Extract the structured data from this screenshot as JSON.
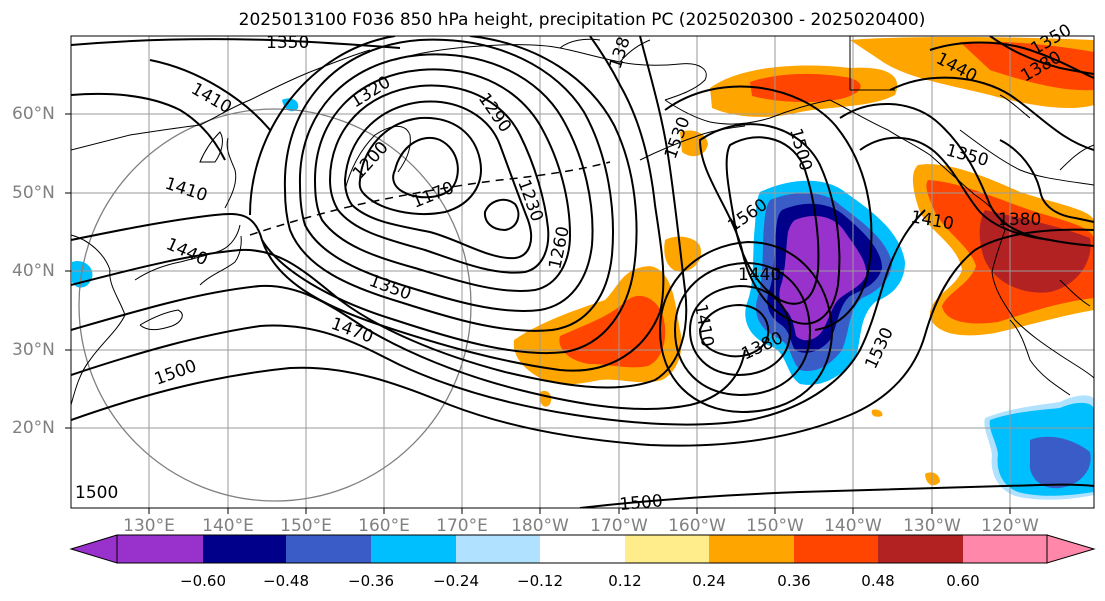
{
  "title": "2025013100 F036 850 hPa height, precipitation PC (2025020300 - 2025020400)",
  "lat_labels": [
    "60°N",
    "50°N",
    "40°N",
    "30°N",
    "20°N"
  ],
  "lon_labels": [
    "130°E",
    "140°E",
    "150°E",
    "160°E",
    "170°E",
    "180°W",
    "170°W",
    "160°W",
    "150°W",
    "140°W",
    "130°W",
    "120°W"
  ],
  "contour_labels": [
    "1350",
    "1410",
    "1320",
    "1290",
    "138",
    "1440",
    "1350",
    "1380",
    "1500",
    "1530",
    "1200",
    "1170",
    "1230",
    "1260",
    "1410",
    "1440",
    "1350",
    "1470",
    "1500",
    "1560",
    "1440",
    "1410",
    "1380",
    "1350",
    "1410",
    "1380",
    "1530",
    "1500",
    "1500"
  ],
  "colorbar": {
    "ticks": [
      "−0.60",
      "−0.48",
      "−0.36",
      "−0.24",
      "−0.12",
      "0.12",
      "0.24",
      "0.36",
      "0.48",
      "0.60"
    ],
    "colors": [
      "#9932cc",
      "#00008b",
      "#3a5cc7",
      "#00bfff",
      "#b0e2ff",
      "#ffffff",
      "#ffec8b",
      "#ffa500",
      "#ff4500",
      "#b22222",
      "#ff88aa"
    ]
  }
}
